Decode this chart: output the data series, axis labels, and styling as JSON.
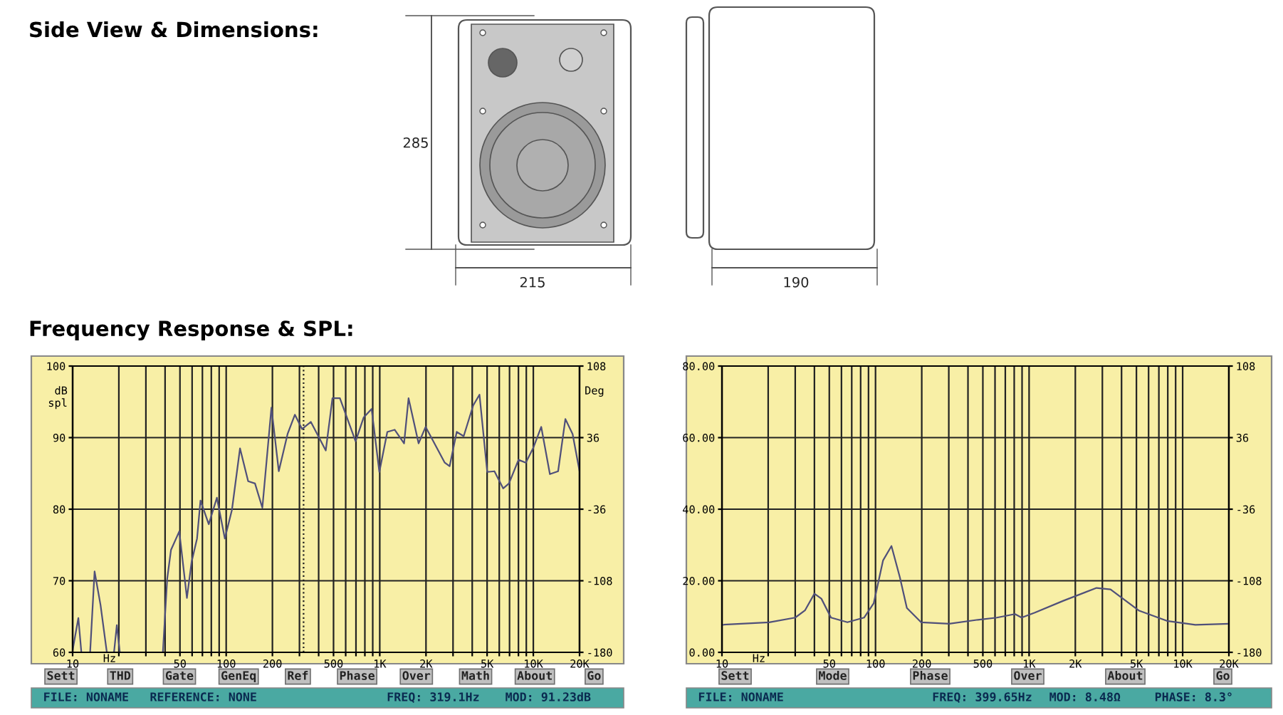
{
  "chart_data": [
    {
      "type": "other",
      "title": "Side View & Dimensions:",
      "annotations": [
        "285",
        "215",
        "190",
        "Frequency Response & SPL:"
      ]
    },
    {
      "type": "line",
      "xlabel": "Hz",
      "ylabel": "dB\nspl",
      "y2label": "Deg",
      "log": "x",
      "grid": true,
      "legend": false,
      "marker": "none",
      "line_style": "solid",
      "xlim": [
        10,
        20000
      ],
      "ylim": [
        60,
        100
      ],
      "y2lim": [
        -180,
        108
      ],
      "xticks": [
        10,
        {
          "value": 20,
          "label": null
        },
        {
          "value": 30,
          "label": null
        },
        {
          "value": 40,
          "label": null
        },
        50,
        {
          "value": 60,
          "label": null
        },
        {
          "value": 70,
          "label": null
        },
        {
          "value": 80,
          "label": null
        },
        {
          "value": 90,
          "label": null
        },
        100,
        200,
        {
          "value": 300,
          "label": null
        },
        {
          "value": 400,
          "label": null
        },
        500,
        {
          "value": 600,
          "label": null
        },
        {
          "value": 700,
          "label": null
        },
        {
          "value": 800,
          "label": null
        },
        {
          "value": 900,
          "label": null
        },
        {
          "value": 1000,
          "label": "1K"
        },
        {
          "value": 2000,
          "label": "2K"
        },
        {
          "value": 3000,
          "label": null
        },
        {
          "value": 4000,
          "label": null
        },
        {
          "value": 5000,
          "label": "5K"
        },
        {
          "value": 6000,
          "label": null
        },
        {
          "value": 7000,
          "label": null
        },
        {
          "value": 8000,
          "label": null
        },
        {
          "value": 9000,
          "label": null
        },
        {
          "value": 10000,
          "label": "10K"
        },
        {
          "value": 20000,
          "label": "20K"
        }
      ],
      "yticks": [
        60,
        70,
        80,
        90,
        100
      ],
      "y2ticks": [
        -180,
        -108,
        -36,
        36,
        108
      ],
      "ref_lines": [
        {
          "axis": "x",
          "value": 319.1,
          "line_style": "dotted",
          "color": "#202020"
        }
      ],
      "series": [
        {
          "color": "#50507a",
          "x": [
            10,
            10.9,
            11.4,
            13,
            13.9,
            15.2,
            16.7,
            18.6,
            19.4,
            20.3,
            30,
            38.7,
            41.3,
            43.7,
            49.5,
            55.5,
            59.5,
            64.6,
            68,
            77,
            87,
            98,
            109,
            123,
            139,
            154,
            172,
            197,
            220,
            251,
            280,
            312,
            356,
            445,
            492,
            550,
            696,
            785,
            885,
            994,
            1120,
            1250,
            1440,
            1540,
            1790,
            1990,
            2650,
            2850,
            3170,
            3520,
            4060,
            4460,
            5010,
            5580,
            6360,
            6940,
            8010,
            8930,
            9960,
            11260,
            12820,
            14500,
            16170,
            18020,
            20000
          ],
          "values": [
            60.3,
            64.8,
            60,
            60,
            71.3,
            66.6,
            60,
            60,
            63.8,
            60,
            null,
            60,
            70.3,
            74.3,
            76.9,
            67.6,
            72.6,
            75.9,
            81.2,
            77.9,
            81.6,
            75.9,
            79.9,
            88.5,
            83.9,
            83.6,
            80.2,
            94.2,
            85.3,
            90.5,
            93.2,
            91.2,
            92.2,
            88.2,
            95.5,
            95.5,
            89.5,
            92.8,
            94,
            85.2,
            90.8,
            91.1,
            89.2,
            95.5,
            89.2,
            91.5,
            86.5,
            86,
            90.8,
            90.2,
            94.5,
            96,
            85.2,
            85.3,
            82.9,
            83.6,
            86.9,
            86.5,
            88.5,
            91.5,
            84.9,
            85.3,
            92.6,
            90.5,
            85.3
          ]
        }
      ],
      "annotations": [
        "Sett",
        "THD",
        "Gate",
        "GenEq",
        "Ref",
        "Phase",
        "Over",
        "Math",
        "About",
        "Go",
        "FILE: NONAME",
        "REFERENCE: NONE",
        "FREQ: 319.1Hz",
        "MOD: 91.23dB"
      ]
    },
    {
      "type": "line",
      "xlabel": "Hz",
      "log": "x",
      "grid": true,
      "legend": false,
      "marker": "none",
      "line_style": "solid",
      "xlim": [
        10,
        20000
      ],
      "ylim": [
        0,
        80
      ],
      "y2lim": [
        -180,
        108
      ],
      "xticks": [
        10,
        {
          "value": 20,
          "label": null
        },
        {
          "value": 30,
          "label": null
        },
        {
          "value": 40,
          "label": null
        },
        50,
        {
          "value": 60,
          "label": null
        },
        {
          "value": 70,
          "label": null
        },
        {
          "value": 80,
          "label": null
        },
        {
          "value": 90,
          "label": null
        },
        100,
        200,
        {
          "value": 300,
          "label": null
        },
        {
          "value": 400,
          "label": null
        },
        500,
        {
          "value": 600,
          "label": null
        },
        {
          "value": 700,
          "label": null
        },
        {
          "value": 800,
          "label": null
        },
        {
          "value": 900,
          "label": null
        },
        {
          "value": 1000,
          "label": "1K"
        },
        {
          "value": 2000,
          "label": "2K"
        },
        {
          "value": 3000,
          "label": null
        },
        {
          "value": 4000,
          "label": null
        },
        {
          "value": 5000,
          "label": "5K"
        },
        {
          "value": 6000,
          "label": null
        },
        {
          "value": 7000,
          "label": null
        },
        {
          "value": 8000,
          "label": null
        },
        {
          "value": 9000,
          "label": null
        },
        {
          "value": 10000,
          "label": "10K"
        },
        {
          "value": 20000,
          "label": "20K"
        }
      ],
      "yticks": [
        {
          "value": 0,
          "label": "0.00"
        },
        {
          "value": 20,
          "label": "20.00"
        },
        {
          "value": 40,
          "label": "40.00"
        },
        {
          "value": 60,
          "label": "60.00"
        },
        {
          "value": 80,
          "label": "80.00"
        }
      ],
      "y2ticks": [
        -180,
        -108,
        -36,
        36,
        108
      ],
      "series": [
        {
          "color": "#50507a",
          "x": [
            10,
            20.3,
            30,
            34.7,
            40,
            44.4,
            51.3,
            65.6,
            84.2,
            97.3,
            112,
            127,
            144,
            160,
            198,
            302,
            464,
            617,
            809,
            894,
            1090,
            1670,
            2750,
            3390,
            5170,
            7890,
            12100,
            20000
          ],
          "values": [
            7.7,
            8.4,
            9.7,
            11.7,
            16.4,
            15,
            9.7,
            8.4,
            9.7,
            13.7,
            25.7,
            29.7,
            21,
            12.4,
            8.4,
            8,
            9.1,
            9.7,
            10.7,
            9.7,
            11.1,
            14.4,
            18,
            17.6,
            11.7,
            8.8,
            7.7,
            8
          ]
        }
      ],
      "annotations": [
        "Sett",
        "Mode",
        "Phase",
        "Over",
        "About",
        "Go",
        "FILE: NONAME",
        "FREQ: 399.65Hz",
        "MOD: 8.48Ω",
        "PHASE: 8.3°"
      ]
    }
  ]
}
